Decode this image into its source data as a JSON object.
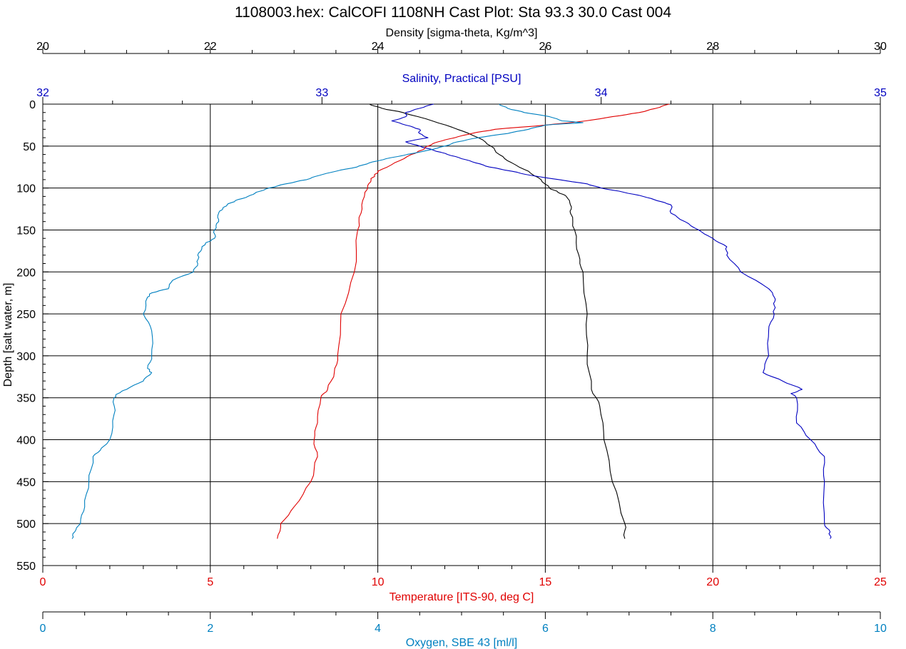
{
  "chart_data": {
    "type": "line",
    "title": "1108003.hex: CalCOFI 1108NH Cast Plot: Sta 93.3 30.0 Cast 004",
    "y_axis": {
      "label": "Depth [salt water, m]",
      "range": [
        0,
        550
      ],
      "inverted": true,
      "ticks": [
        "0",
        "50",
        "100",
        "150",
        "200",
        "250",
        "300",
        "350",
        "400",
        "450",
        "500",
        "550"
      ]
    },
    "x_axes": [
      {
        "id": "density",
        "label": "Density [sigma-theta, Kg/m^3]",
        "position": "top",
        "range": [
          20,
          30
        ],
        "ticks": [
          "20",
          "22",
          "24",
          "26",
          "28",
          "30"
        ],
        "color": "#000000"
      },
      {
        "id": "salinity",
        "label": "Salinity, Practical [PSU]",
        "position": "top",
        "range": [
          32,
          35
        ],
        "ticks": [
          "32",
          "33",
          "34",
          "35"
        ],
        "color": "#0000c0"
      },
      {
        "id": "temperature",
        "label": "Temperature [ITS-90, deg C]",
        "position": "bottom",
        "range": [
          0,
          25
        ],
        "ticks": [
          "0",
          "5",
          "10",
          "15",
          "20",
          "25"
        ],
        "color": "#e00000"
      },
      {
        "id": "oxygen",
        "label": "Oxygen, SBE 43 [ml/l]",
        "position": "bottom",
        "range": [
          0,
          10
        ],
        "ticks": [
          "0",
          "2",
          "4",
          "6",
          "8",
          "10"
        ],
        "color": "#0080c0"
      }
    ],
    "grid": true,
    "series": [
      {
        "axis": "density",
        "color": "#000000",
        "depth": [
          0,
          5,
          10,
          20,
          30,
          40,
          50,
          60,
          70,
          80,
          90,
          100,
          105,
          110,
          120,
          130,
          150,
          180,
          200,
          250,
          300,
          340,
          360,
          400,
          450,
          500,
          518
        ],
        "values": [
          23.9,
          24.05,
          24.3,
          24.65,
          24.95,
          25.2,
          25.35,
          25.45,
          25.6,
          25.8,
          25.95,
          26.05,
          26.15,
          26.25,
          26.3,
          26.3,
          26.35,
          26.4,
          26.45,
          26.5,
          26.5,
          26.55,
          26.65,
          26.7,
          26.8,
          26.95,
          26.95
        ]
      },
      {
        "axis": "salinity",
        "color": "#0000c0",
        "depth": [
          0,
          5,
          10,
          15,
          20,
          25,
          30,
          35,
          40,
          45,
          50,
          55,
          60,
          65,
          70,
          75,
          80,
          85,
          90,
          95,
          100,
          105,
          110,
          115,
          120,
          130,
          140,
          150,
          160,
          170,
          180,
          200,
          220,
          230,
          240,
          250,
          270,
          300,
          320,
          330,
          340,
          345,
          350,
          380,
          400,
          420,
          450,
          500,
          510,
          518
        ],
        "values": [
          33.4,
          33.35,
          33.3,
          33.3,
          33.25,
          33.3,
          33.35,
          33.35,
          33.38,
          33.3,
          33.35,
          33.4,
          33.45,
          33.5,
          33.55,
          33.6,
          33.68,
          33.75,
          33.85,
          33.95,
          34.0,
          34.08,
          34.15,
          34.2,
          34.25,
          34.25,
          34.3,
          34.35,
          34.4,
          34.45,
          34.45,
          34.5,
          34.6,
          34.62,
          34.62,
          34.62,
          34.6,
          34.6,
          34.58,
          34.65,
          34.72,
          34.68,
          34.7,
          34.7,
          34.75,
          34.8,
          34.8,
          34.8,
          34.82,
          34.82
        ]
      },
      {
        "axis": "temperature",
        "color": "#e00000",
        "depth": [
          0,
          5,
          10,
          15,
          20,
          25,
          30,
          35,
          40,
          45,
          50,
          55,
          60,
          70,
          80,
          85,
          90,
          100,
          110,
          130,
          150,
          200,
          250,
          300,
          320,
          340,
          350,
          380,
          400,
          420,
          450,
          480,
          500,
          518
        ],
        "values": [
          18.7,
          18.3,
          17.8,
          17.0,
          16.2,
          15.0,
          13.5,
          12.8,
          12.3,
          11.8,
          11.5,
          11.3,
          11.0,
          10.5,
          10.0,
          9.9,
          9.8,
          9.7,
          9.6,
          9.5,
          9.4,
          9.3,
          8.9,
          8.8,
          8.7,
          8.5,
          8.3,
          8.2,
          8.1,
          8.2,
          8.0,
          7.5,
          7.1,
          7.0
        ]
      },
      {
        "axis": "oxygen",
        "color": "#0080c0",
        "depth": [
          0,
          5,
          10,
          15,
          20,
          22,
          25,
          30,
          35,
          40,
          45,
          50,
          55,
          60,
          65,
          70,
          75,
          80,
          85,
          90,
          95,
          100,
          105,
          110,
          115,
          120,
          125,
          130,
          140,
          150,
          160,
          165,
          170,
          180,
          190,
          200,
          210,
          220,
          225,
          230,
          250,
          270,
          300,
          315,
          320,
          330,
          340,
          345,
          350,
          370,
          400,
          410,
          420,
          450,
          480,
          500,
          510,
          518
        ],
        "values": [
          5.45,
          5.55,
          5.75,
          6.05,
          6.2,
          6.45,
          6.0,
          5.8,
          5.55,
          5.2,
          4.95,
          4.8,
          4.6,
          4.35,
          4.1,
          3.9,
          3.75,
          3.5,
          3.3,
          3.15,
          2.9,
          2.7,
          2.55,
          2.45,
          2.3,
          2.2,
          2.15,
          2.1,
          2.1,
          2.05,
          2.05,
          1.95,
          1.9,
          1.85,
          1.85,
          1.8,
          1.55,
          1.5,
          1.3,
          1.25,
          1.2,
          1.3,
          1.3,
          1.25,
          1.3,
          1.2,
          1.0,
          0.9,
          0.85,
          0.85,
          0.8,
          0.7,
          0.6,
          0.55,
          0.5,
          0.45,
          0.38,
          0.35
        ]
      }
    ]
  }
}
